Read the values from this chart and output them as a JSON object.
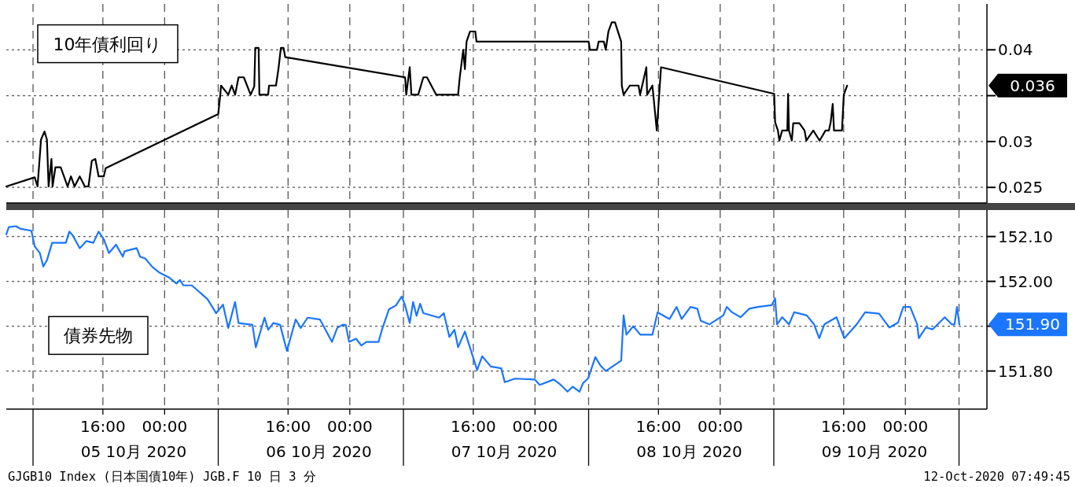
{
  "chart_data": [
    {
      "type": "line",
      "legend": "top left",
      "grid": true,
      "tick_labels": "y",
      "xlim": [
        "2020-10-05T03:29",
        "2020-10-10T10:34"
      ],
      "ylim": [
        0.0233,
        0.045
      ],
      "xticks": [
        {
          "value": "2020-10-05T06:57",
          "label": null
        },
        {
          "value": "2020-10-05T16:00",
          "label": null
        },
        {
          "value": "2020-10-06T00:00",
          "label": null
        },
        {
          "value": "2020-10-06T06:57",
          "label": null
        },
        {
          "value": "2020-10-06T16:00",
          "label": null
        },
        {
          "value": "2020-10-07T00:00",
          "label": null
        },
        {
          "value": "2020-10-07T06:57",
          "label": null
        },
        {
          "value": "2020-10-07T16:00",
          "label": null
        },
        {
          "value": "2020-10-08T00:00",
          "label": null
        },
        {
          "value": "2020-10-08T06:57",
          "label": null
        },
        {
          "value": "2020-10-08T16:00",
          "label": null
        },
        {
          "value": "2020-10-09T00:00",
          "label": null
        },
        {
          "value": "2020-10-09T06:57",
          "label": null
        },
        {
          "value": "2020-10-09T16:00",
          "label": null
        },
        {
          "value": "2020-10-10T00:00",
          "label": null
        },
        {
          "value": "2020-10-10T06:57",
          "label": null
        }
      ],
      "yticks": [
        0.025,
        0.03,
        {
          "value": 0.035,
          "label": null
        },
        0.04
      ],
      "annotations": [
        "0.036"
      ],
      "series": [
        {
          "name": "10年債利回り",
          "color": "#000000",
          "x": [
            "2020-10-05T03:29",
            "2020-10-05T07:10",
            "2020-10-05T07:32",
            "2020-10-05T07:59",
            "2020-10-05T08:26",
            "2020-10-05T08:45",
            "2020-10-05T08:58",
            "2020-10-05T09:20",
            "2020-10-05T09:29",
            "2020-10-05T09:51",
            "2020-10-05T10:32",
            "2020-10-05T11:26",
            "2020-10-05T11:52",
            "2020-10-05T12:20",
            "2020-10-05T13:00",
            "2020-10-05T13:40",
            "2020-10-05T14:08",
            "2020-10-05T14:34",
            "2020-10-05T15:01",
            "2020-10-05T15:27",
            "2020-10-05T16:07",
            "2020-10-05T16:22",
            "2020-10-06T06:57",
            "2020-10-06T07:13",
            "2020-10-06T07:19",
            "2020-10-06T08:15",
            "2020-10-06T08:42",
            "2020-10-06T09:08",
            "2020-10-06T09:35",
            "2020-10-06T10:16",
            "2020-10-06T11:09",
            "2020-10-06T11:37",
            "2020-10-06T11:45",
            "2020-10-06T12:11",
            "2020-10-06T12:17",
            "2020-10-06T13:25",
            "2020-10-06T13:32",
            "2020-10-06T14:26",
            "2020-10-06T14:45",
            "2020-10-06T15:04",
            "2020-10-06T15:25",
            "2020-10-06T15:38",
            "2020-10-07T07:10",
            "2020-10-07T07:19",
            "2020-10-07T07:46",
            "2020-10-07T07:59",
            "2020-10-07T08:52",
            "2020-10-07T09:32",
            "2020-10-07T10:00",
            "2020-10-07T11:12",
            "2020-10-07T14:02",
            "2020-10-07T14:15",
            "2020-10-07T14:42",
            "2020-10-07T14:55",
            "2020-10-07T15:08",
            "2020-10-07T15:35",
            "2020-10-07T16:16",
            "2020-10-07T16:25",
            "2020-10-08T06:57",
            "2020-10-08T07:07",
            "2020-10-08T08:02",
            "2020-10-08T08:15",
            "2020-10-08T08:55",
            "2020-10-08T09:10",
            "2020-10-08T09:31",
            "2020-10-08T09:57",
            "2020-10-08T10:22",
            "2020-10-08T11:10",
            "2020-10-08T11:15",
            "2020-10-08T11:29",
            "2020-10-08T12:17",
            "2020-10-08T13:25",
            "2020-10-08T13:37",
            "2020-10-08T14:26",
            "2020-10-08T14:32",
            "2020-10-08T15:13",
            "2020-10-08T15:47",
            "2020-10-08T16:20",
            "2020-10-09T07:00",
            "2020-10-09T07:07",
            "2020-10-09T07:29",
            "2020-10-09T07:40",
            "2020-10-09T08:02",
            "2020-10-09T08:42",
            "2020-10-09T08:48",
            "2020-10-09T08:55",
            "2020-10-09T09:17",
            "2020-10-09T09:28",
            "2020-10-09T10:16",
            "2020-10-09T10:56",
            "2020-10-09T11:10",
            "2020-10-09T12:04",
            "2020-10-09T12:53",
            "2020-10-09T13:39",
            "2020-10-09T14:05",
            "2020-10-09T14:19",
            "2020-10-09T14:35",
            "2020-10-09T14:45",
            "2020-10-09T15:47",
            "2020-10-09T16:01",
            "2020-10-09T16:27"
          ],
          "values": [
            0.0251,
            0.0261,
            0.0251,
            0.0302,
            0.0311,
            0.0302,
            0.0251,
            0.0281,
            0.0251,
            0.0272,
            0.0272,
            0.0251,
            0.0262,
            0.0251,
            0.0262,
            0.0251,
            0.0251,
            0.0279,
            0.0281,
            0.0262,
            0.0262,
            0.0271,
            0.033,
            0.0351,
            0.0361,
            0.0351,
            0.0361,
            0.0351,
            0.037,
            0.037,
            0.0351,
            0.036,
            0.0402,
            0.0402,
            0.0351,
            0.0351,
            0.0361,
            0.0361,
            0.0379,
            0.0402,
            0.0402,
            0.0392,
            0.037,
            0.0351,
            0.0381,
            0.0351,
            0.0351,
            0.037,
            0.037,
            0.0351,
            0.0351,
            0.037,
            0.04,
            0.0379,
            0.0409,
            0.042,
            0.042,
            0.0409,
            0.0409,
            0.04,
            0.04,
            0.0409,
            0.0409,
            0.04,
            0.042,
            0.043,
            0.043,
            0.0409,
            0.0361,
            0.0351,
            0.0361,
            0.0361,
            0.0351,
            0.0381,
            0.0351,
            0.0361,
            0.0312,
            0.0381,
            0.0352,
            0.0321,
            0.0312,
            0.0301,
            0.0312,
            0.0312,
            0.0352,
            0.0312,
            0.0301,
            0.032,
            0.032,
            0.0312,
            0.0301,
            0.0312,
            0.0301,
            0.0312,
            0.0312,
            0.0321,
            0.0341,
            0.0312,
            0.0312,
            0.0351,
            0.0361
          ]
        }
      ]
    },
    {
      "type": "line",
      "legend": "left",
      "grid": true,
      "xlim": [
        "2020-10-05T03:29",
        "2020-10-10T10:34"
      ],
      "ylim": [
        151.715,
        152.159
      ],
      "xticks": [
        {
          "value": "2020-10-05T06:57",
          "label": null
        },
        {
          "value": "2020-10-05T16:00",
          "label": "16:00"
        },
        {
          "value": "2020-10-06T00:00",
          "label": "00:00"
        },
        {
          "value": "2020-10-06T06:57",
          "label": null
        },
        {
          "value": "2020-10-06T16:00",
          "label": "16:00"
        },
        {
          "value": "2020-10-07T00:00",
          "label": "00:00"
        },
        {
          "value": "2020-10-07T06:57",
          "label": null
        },
        {
          "value": "2020-10-07T16:00",
          "label": "16:00"
        },
        {
          "value": "2020-10-08T00:00",
          "label": "00:00"
        },
        {
          "value": "2020-10-08T06:57",
          "label": null
        },
        {
          "value": "2020-10-08T16:00",
          "label": "16:00"
        },
        {
          "value": "2020-10-09T00:00",
          "label": "00:00"
        },
        {
          "value": "2020-10-09T06:57",
          "label": null
        },
        {
          "value": "2020-10-09T16:00",
          "label": "16:00"
        },
        {
          "value": "2020-10-10T00:00",
          "label": "00:00"
        },
        {
          "value": "2020-10-10T06:57",
          "label": null
        }
      ],
      "yticks": [
        {
          "value": 151.8,
          "label": "151.80"
        },
        {
          "value": 151.9,
          "label": null
        },
        {
          "value": 152.0,
          "label": "152.00"
        },
        {
          "value": 152.1,
          "label": "152.10"
        }
      ],
      "annotations": [
        "151.90",
        "05 10月 2020",
        "06 10月 2020",
        "07 10月 2020",
        "08 10月 2020",
        "09 10月 2020",
        "GJGB10 Index (日本国債10年) JGB.F 10 日 3 分",
        "12-Oct-2020 07:49:45"
      ],
      "series": [
        {
          "name": "債券先物",
          "color": "#1a75ff",
          "x": [
            "2020-10-05T03:29",
            "2020-10-05T03:49",
            "2020-10-05T04:43",
            "2020-10-05T05:23",
            "2020-10-05T06:44",
            "2020-10-05T07:10",
            "2020-10-05T07:50",
            "2020-10-05T08:17",
            "2020-10-05T08:45",
            "2020-10-05T09:25",
            "2020-10-05T11:12",
            "2020-10-05T11:39",
            "2020-10-05T12:07",
            "2020-10-05T13:00",
            "2020-10-05T13:53",
            "2020-10-05T14:46",
            "2020-10-05T15:27",
            "2020-10-05T16:07",
            "2020-10-05T16:47",
            "2020-10-05T17:42",
            "2020-10-05T18:35",
            "2020-10-05T18:49",
            "2020-10-05T20:23",
            "2020-10-05T20:49",
            "2020-10-05T21:29",
            "2020-10-05T22:25",
            "2020-10-05T23:17",
            "2020-10-06T00:38",
            "2020-10-06T01:32",
            "2020-10-06T01:59",
            "2020-10-06T02:26",
            "2020-10-06T03:32",
            "2020-10-06T05:34",
            "2020-10-06T06:41",
            "2020-10-06T07:34",
            "2020-10-06T08:15",
            "2020-10-06T09:08",
            "2020-10-06T09:35",
            "2020-10-06T11:23",
            "2020-10-06T11:49",
            "2020-10-06T12:57",
            "2020-10-06T13:25",
            "2020-10-06T14:05",
            "2020-10-06T14:58",
            "2020-10-06T15:51",
            "2020-10-06T16:59",
            "2020-10-06T17:39",
            "2020-10-06T18:32",
            "2020-10-06T20:08",
            "2020-10-06T21:41",
            "2020-10-06T22:22",
            "2020-10-06T23:02",
            "2020-10-06T23:28",
            "2020-10-06T23:55",
            "2020-10-07T00:49",
            "2020-10-07T01:29",
            "2020-10-07T02:09",
            "2020-10-07T03:44",
            "2020-10-07T04:10",
            "2020-10-07T05:05",
            "2020-10-07T05:58",
            "2020-10-07T06:44",
            "2020-10-07T07:10",
            "2020-10-07T07:46",
            "2020-10-07T08:12",
            "2020-10-07T08:39",
            "2020-10-07T09:07",
            "2020-10-07T09:32",
            "2020-10-07T11:34",
            "2020-10-07T12:11",
            "2020-10-07T12:54",
            "2020-10-07T13:34",
            "2020-10-07T14:02",
            "2020-10-07T14:55",
            "2020-10-07T16:30",
            "2020-10-07T17:09",
            "2020-10-07T18:17",
            "2020-10-07T19:37",
            "2020-10-07T20:05",
            "2020-10-07T21:25",
            "2020-10-07T23:59",
            "2020-10-08T00:37",
            "2020-10-08T02:25",
            "2020-10-08T03:20",
            "2020-10-08T04:13",
            "2020-10-08T04:53",
            "2020-10-08T05:46",
            "2020-10-08T06:14",
            "2020-10-08T06:54",
            "2020-10-08T07:49",
            "2020-10-08T08:29",
            "2020-10-08T09:10",
            "2020-10-08T11:10",
            "2020-10-08T11:29",
            "2020-10-08T11:51",
            "2020-10-08T12:44",
            "2020-10-08T13:39",
            "2020-10-08T15:13",
            "2020-10-08T15:53",
            "2020-10-08T17:26",
            "2020-10-08T18:21",
            "2020-10-08T19:01",
            "2020-10-08T20:09",
            "2020-10-08T21:02",
            "2020-10-08T21:29",
            "2020-10-08T22:36",
            "2020-10-09T00:24",
            "2020-10-09T00:51",
            "2020-10-09T01:32",
            "2020-10-09T02:39",
            "2020-10-09T03:46",
            "2020-10-09T04:53",
            "2020-10-09T06:41",
            "2020-10-09T07:07",
            "2020-10-09T07:22",
            "2020-10-09T08:02",
            "2020-10-09T08:55",
            "2020-10-09T09:35",
            "2020-10-09T11:13",
            "2020-10-09T12:10",
            "2020-10-09T12:50",
            "2020-10-09T13:30",
            "2020-10-09T15:04",
            "2020-10-09T16:05",
            "2020-10-09T17:41",
            "2020-10-09T18:47",
            "2020-10-09T20:35",
            "2020-10-09T21:56",
            "2020-10-09T23:03",
            "2020-10-09T23:44",
            "2020-10-10T00:37",
            "2020-10-10T01:32",
            "2020-10-10T01:44",
            "2020-10-10T02:39",
            "2020-10-10T03:32",
            "2020-10-10T05:06",
            "2020-10-10T06:01",
            "2020-10-10T06:22",
            "2020-10-10T06:41",
            "2020-10-10T07:00"
          ],
          "values": [
            152.105,
            152.121,
            152.123,
            152.117,
            152.113,
            152.078,
            152.063,
            152.033,
            152.047,
            152.086,
            152.086,
            152.111,
            152.102,
            152.074,
            152.09,
            152.086,
            152.111,
            152.094,
            152.063,
            152.082,
            152.055,
            152.067,
            152.074,
            152.055,
            152.051,
            152.032,
            152.02,
            152.008,
            151.995,
            152.003,
            151.991,
            151.991,
            151.96,
            151.929,
            151.948,
            151.896,
            151.954,
            151.907,
            151.903,
            151.853,
            151.919,
            151.892,
            151.907,
            151.903,
            151.845,
            151.915,
            151.896,
            151.919,
            151.915,
            151.865,
            151.896,
            151.903,
            151.903,
            151.865,
            151.872,
            151.857,
            151.865,
            151.865,
            151.892,
            151.938,
            151.946,
            151.966,
            151.946,
            151.907,
            151.954,
            151.923,
            151.95,
            151.929,
            151.919,
            151.929,
            151.876,
            151.892,
            151.853,
            151.888,
            151.802,
            151.833,
            151.81,
            151.806,
            151.775,
            151.783,
            151.781,
            151.769,
            151.781,
            151.769,
            151.754,
            151.765,
            151.754,
            151.773,
            151.784,
            151.831,
            151.812,
            151.8,
            151.823,
            151.924,
            151.881,
            151.9,
            151.881,
            151.881,
            151.931,
            151.916,
            151.943,
            151.916,
            151.943,
            151.939,
            151.912,
            151.904,
            151.924,
            151.943,
            151.931,
            151.92,
            151.939,
            151.943,
            151.947,
            151.962,
            151.904,
            151.92,
            151.904,
            151.931,
            151.924,
            151.904,
            151.873,
            151.904,
            151.92,
            151.873,
            151.904,
            151.931,
            151.928,
            151.897,
            151.908,
            151.943,
            151.943,
            151.904,
            151.873,
            151.897,
            151.893,
            151.92,
            151.904,
            151.904,
            151.943,
            151.904
          ]
        }
      ]
    }
  ]
}
